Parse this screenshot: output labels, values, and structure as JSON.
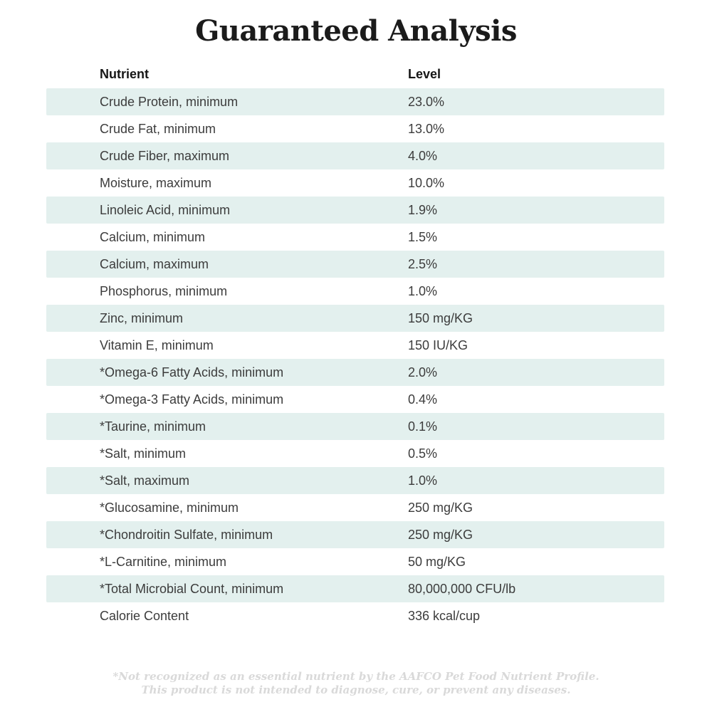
{
  "title": "Guaranteed Analysis",
  "table": {
    "headers": {
      "nutrient": "Nutrient",
      "level": "Level"
    },
    "rows": [
      {
        "nutrient": "Crude Protein, minimum",
        "level": "23.0%"
      },
      {
        "nutrient": "Crude Fat, minimum",
        "level": "13.0%"
      },
      {
        "nutrient": "Crude Fiber, maximum",
        "level": "4.0%"
      },
      {
        "nutrient": "Moisture, maximum",
        "level": "10.0%"
      },
      {
        "nutrient": "Linoleic Acid, minimum",
        "level": "1.9%"
      },
      {
        "nutrient": "Calcium, minimum",
        "level": "1.5%"
      },
      {
        "nutrient": "Calcium, maximum",
        "level": "2.5%"
      },
      {
        "nutrient": "Phosphorus, minimum",
        "level": "1.0%"
      },
      {
        "nutrient": "Zinc, minimum",
        "level": "150 mg/KG"
      },
      {
        "nutrient": "Vitamin E, minimum",
        "level": "150 IU/KG"
      },
      {
        "nutrient": "*Omega-6 Fatty Acids, minimum",
        "level": "2.0%"
      },
      {
        "nutrient": "*Omega-3 Fatty Acids, minimum",
        "level": "0.4%"
      },
      {
        "nutrient": "*Taurine, minimum",
        "level": "0.1%"
      },
      {
        "nutrient": "*Salt, minimum",
        "level": "0.5%"
      },
      {
        "nutrient": "*Salt, maximum",
        "level": "1.0%"
      },
      {
        "nutrient": "*Glucosamine, minimum",
        "level": "250 mg/KG"
      },
      {
        "nutrient": "*Chondroitin Sulfate, minimum",
        "level": "250 mg/KG"
      },
      {
        "nutrient": "*L-Carnitine, minimum",
        "level": "50 mg/KG"
      },
      {
        "nutrient": "*Total Microbial Count, minimum",
        "level": "80,000,000 CFU/lb"
      },
      {
        "nutrient": "Calorie Content",
        "level": "336 kcal/cup"
      }
    ]
  },
  "footnote": {
    "line1": "*Not recognized as an essential nutrient by the AAFCO Pet Food Nutrient Profile.",
    "line2": "This product is not intended to diagnose, cure, or prevent any diseases."
  },
  "colors": {
    "row_stripe": "#e3f0ee",
    "body_text": "#3c3c3c",
    "header_text": "#161616",
    "title_text": "#1b1b1b",
    "footnote_text": "#d9d9d9",
    "background": "#ffffff"
  }
}
